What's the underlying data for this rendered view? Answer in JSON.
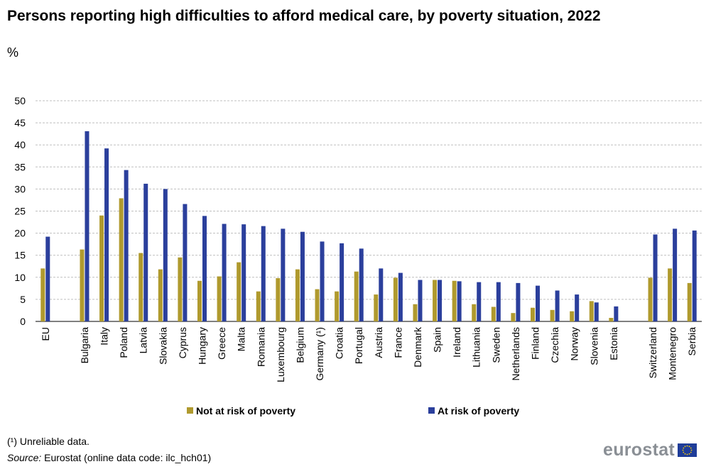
{
  "title": "Persons reporting high difficulties to afford medical care, by poverty situation, 2022",
  "unit": "%",
  "footnote": "(¹) Unreliable data.",
  "source_label": "Source:",
  "source_text": "Eurostat (online data code: ilc_hch01)",
  "brand": "eurostat",
  "colors": {
    "not_at_risk": "#b09a2e",
    "at_risk": "#2b3f9c",
    "grid": "#bfbfbf",
    "flag": "#1f3d99",
    "flag_stars": "#ffd200"
  },
  "chart_data": {
    "type": "bar",
    "title": "Persons reporting high difficulties to afford medical care, by poverty situation, 2022",
    "ylabel": "%",
    "ylim": [
      0,
      50
    ],
    "yticks": [
      0,
      5,
      10,
      15,
      20,
      25,
      30,
      35,
      40,
      45,
      50
    ],
    "grid": true,
    "legend_position": "bottom",
    "categories": [
      "EU",
      "",
      "Bulgaria",
      "Italy",
      "Poland",
      "Latvia",
      "Slovakia",
      "Cyprus",
      "Hungary",
      "Greece",
      "Malta",
      "Romania",
      "Luxembourg",
      "Belgium",
      "Germany (¹)",
      "Croatia",
      "Portugal",
      "Austria",
      "France",
      "Denmark",
      "Spain",
      "Ireland",
      "Lithuania",
      "Sweden",
      "Netherlands",
      "Finland",
      "Czechia",
      "Norway",
      "Slovenia",
      "Estonia",
      "",
      "Switzerland",
      "Montenegro",
      "Serbia"
    ],
    "series": [
      {
        "name": "Not at risk of poverty",
        "values": [
          12.0,
          null,
          16.3,
          24.0,
          27.9,
          15.5,
          11.8,
          14.5,
          9.2,
          10.2,
          13.4,
          6.8,
          9.8,
          11.8,
          7.3,
          6.8,
          11.3,
          6.1,
          9.9,
          3.9,
          9.4,
          9.2,
          3.9,
          3.3,
          1.9,
          3.1,
          2.6,
          2.3,
          4.6,
          0.8,
          null,
          9.9,
          12.0,
          8.7
        ]
      },
      {
        "name": "At risk of poverty",
        "values": [
          19.2,
          null,
          43.1,
          39.2,
          34.3,
          31.2,
          30.0,
          26.6,
          23.9,
          22.1,
          22.0,
          21.6,
          21.0,
          20.3,
          18.1,
          17.7,
          16.5,
          12.0,
          11.0,
          9.4,
          9.4,
          9.1,
          8.9,
          8.9,
          8.7,
          8.1,
          7.0,
          6.1,
          4.3,
          3.4,
          null,
          19.7,
          21.0,
          20.6
        ]
      }
    ]
  }
}
